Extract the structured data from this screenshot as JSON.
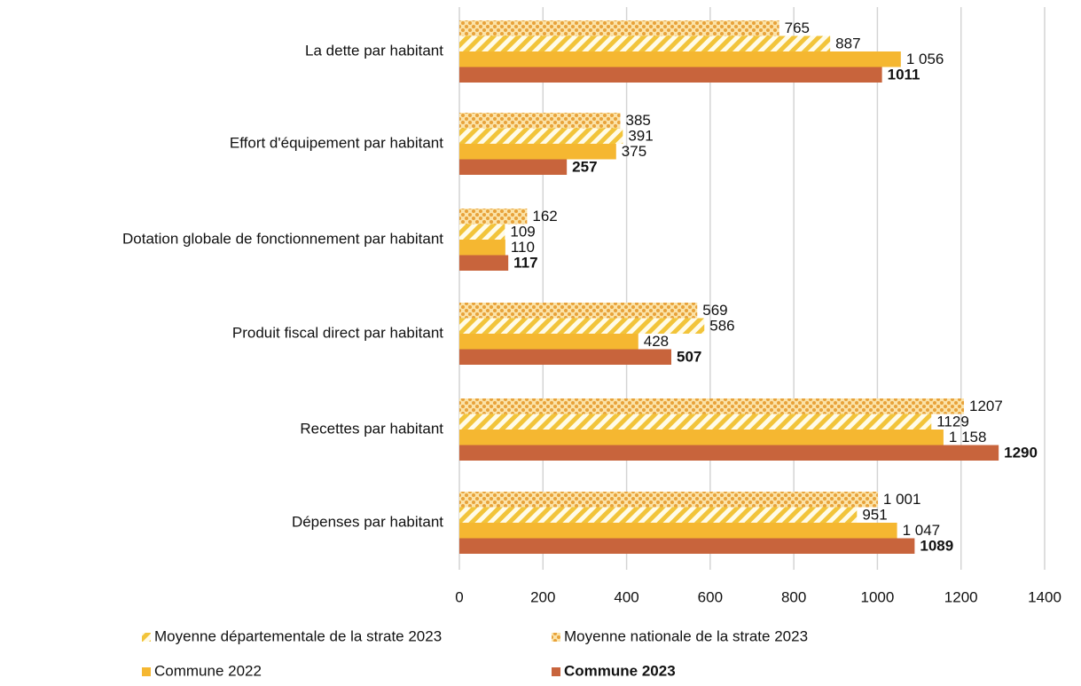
{
  "chart_data": {
    "type": "bar",
    "orientation": "horizontal",
    "categories": [
      "La dette par habitant",
      "Effort d'équipement par habitant",
      "Dotation globale de fonctionnement par habitant",
      "Produit fiscal direct par habitant",
      "Recettes par habitant",
      "Dépenses par habitant"
    ],
    "series": [
      {
        "name": "Moyenne départementale de la strate 2023",
        "color": "#f2c43a",
        "pattern": "stripes",
        "values": [
          887,
          391,
          109,
          586,
          1129,
          951
        ]
      },
      {
        "name": "Moyenne nationale de la strate 2023",
        "color": "#e8a23a",
        "pattern": "dots",
        "values": [
          765,
          385,
          162,
          569,
          1207,
          1001
        ],
        "value_labels": [
          "765",
          "385",
          "162",
          "569",
          "1207",
          "1 001"
        ]
      },
      {
        "name": "Commune 2022",
        "color": "#f5b731",
        "values": [
          1056,
          375,
          110,
          428,
          1158,
          1047
        ],
        "value_labels": [
          "1 056",
          "375",
          "110",
          "428",
          "1 158",
          "1 047"
        ]
      },
      {
        "name": "Commune 2023",
        "color": "#c8643c",
        "bold": true,
        "values": [
          1011,
          257,
          117,
          507,
          1290,
          1089
        ]
      }
    ],
    "xlim": [
      0,
      1400
    ],
    "xticks": [
      0,
      200,
      400,
      600,
      800,
      1000,
      1200,
      1400
    ],
    "grid": true
  }
}
